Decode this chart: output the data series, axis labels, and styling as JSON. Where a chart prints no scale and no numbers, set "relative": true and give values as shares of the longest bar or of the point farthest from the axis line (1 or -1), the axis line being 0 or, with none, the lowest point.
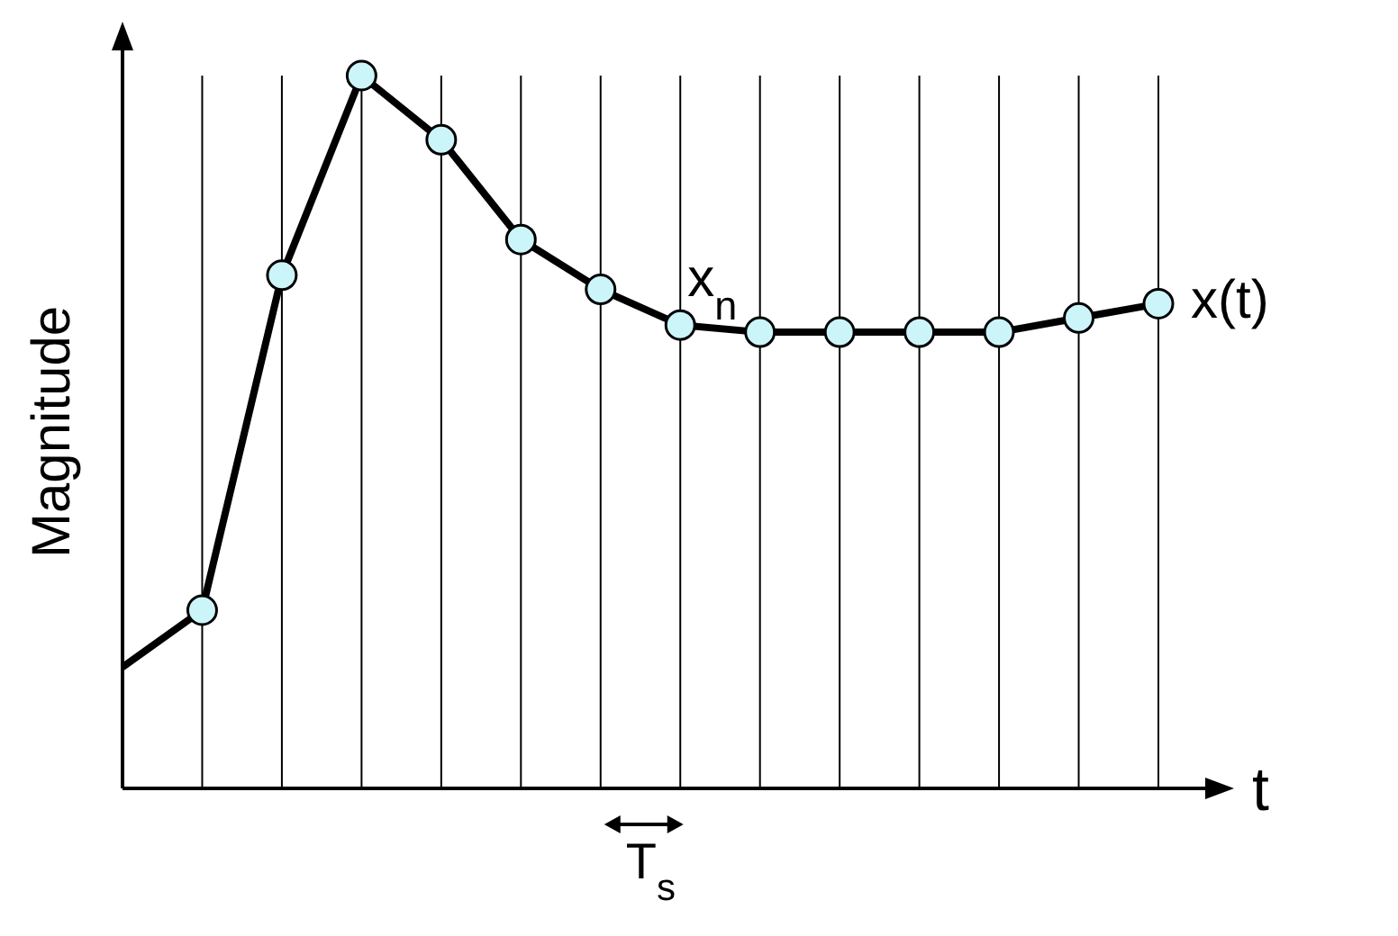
{
  "chart_data": {
    "type": "line",
    "relative": true,
    "ylabel": "Magnitude",
    "xlabel": "t",
    "categories": [
      null,
      null,
      null,
      null,
      null,
      null,
      null,
      null,
      null,
      null,
      null,
      null,
      null,
      null
    ],
    "grid": "x",
    "legend": "right",
    "marker": "circle",
    "annotations": [
      "x$_{n}$",
      "T$_{s}$"
    ],
    "series": [
      {
        "name": "x(t)",
        "color": "#000000",
        "values": [
          0.17,
          0.25,
          0.72,
          1,
          0.91,
          0.77,
          0.7,
          0.65,
          0.64,
          0.64,
          0.64,
          0.64,
          0.66,
          0.68
        ]
      }
    ]
  }
}
